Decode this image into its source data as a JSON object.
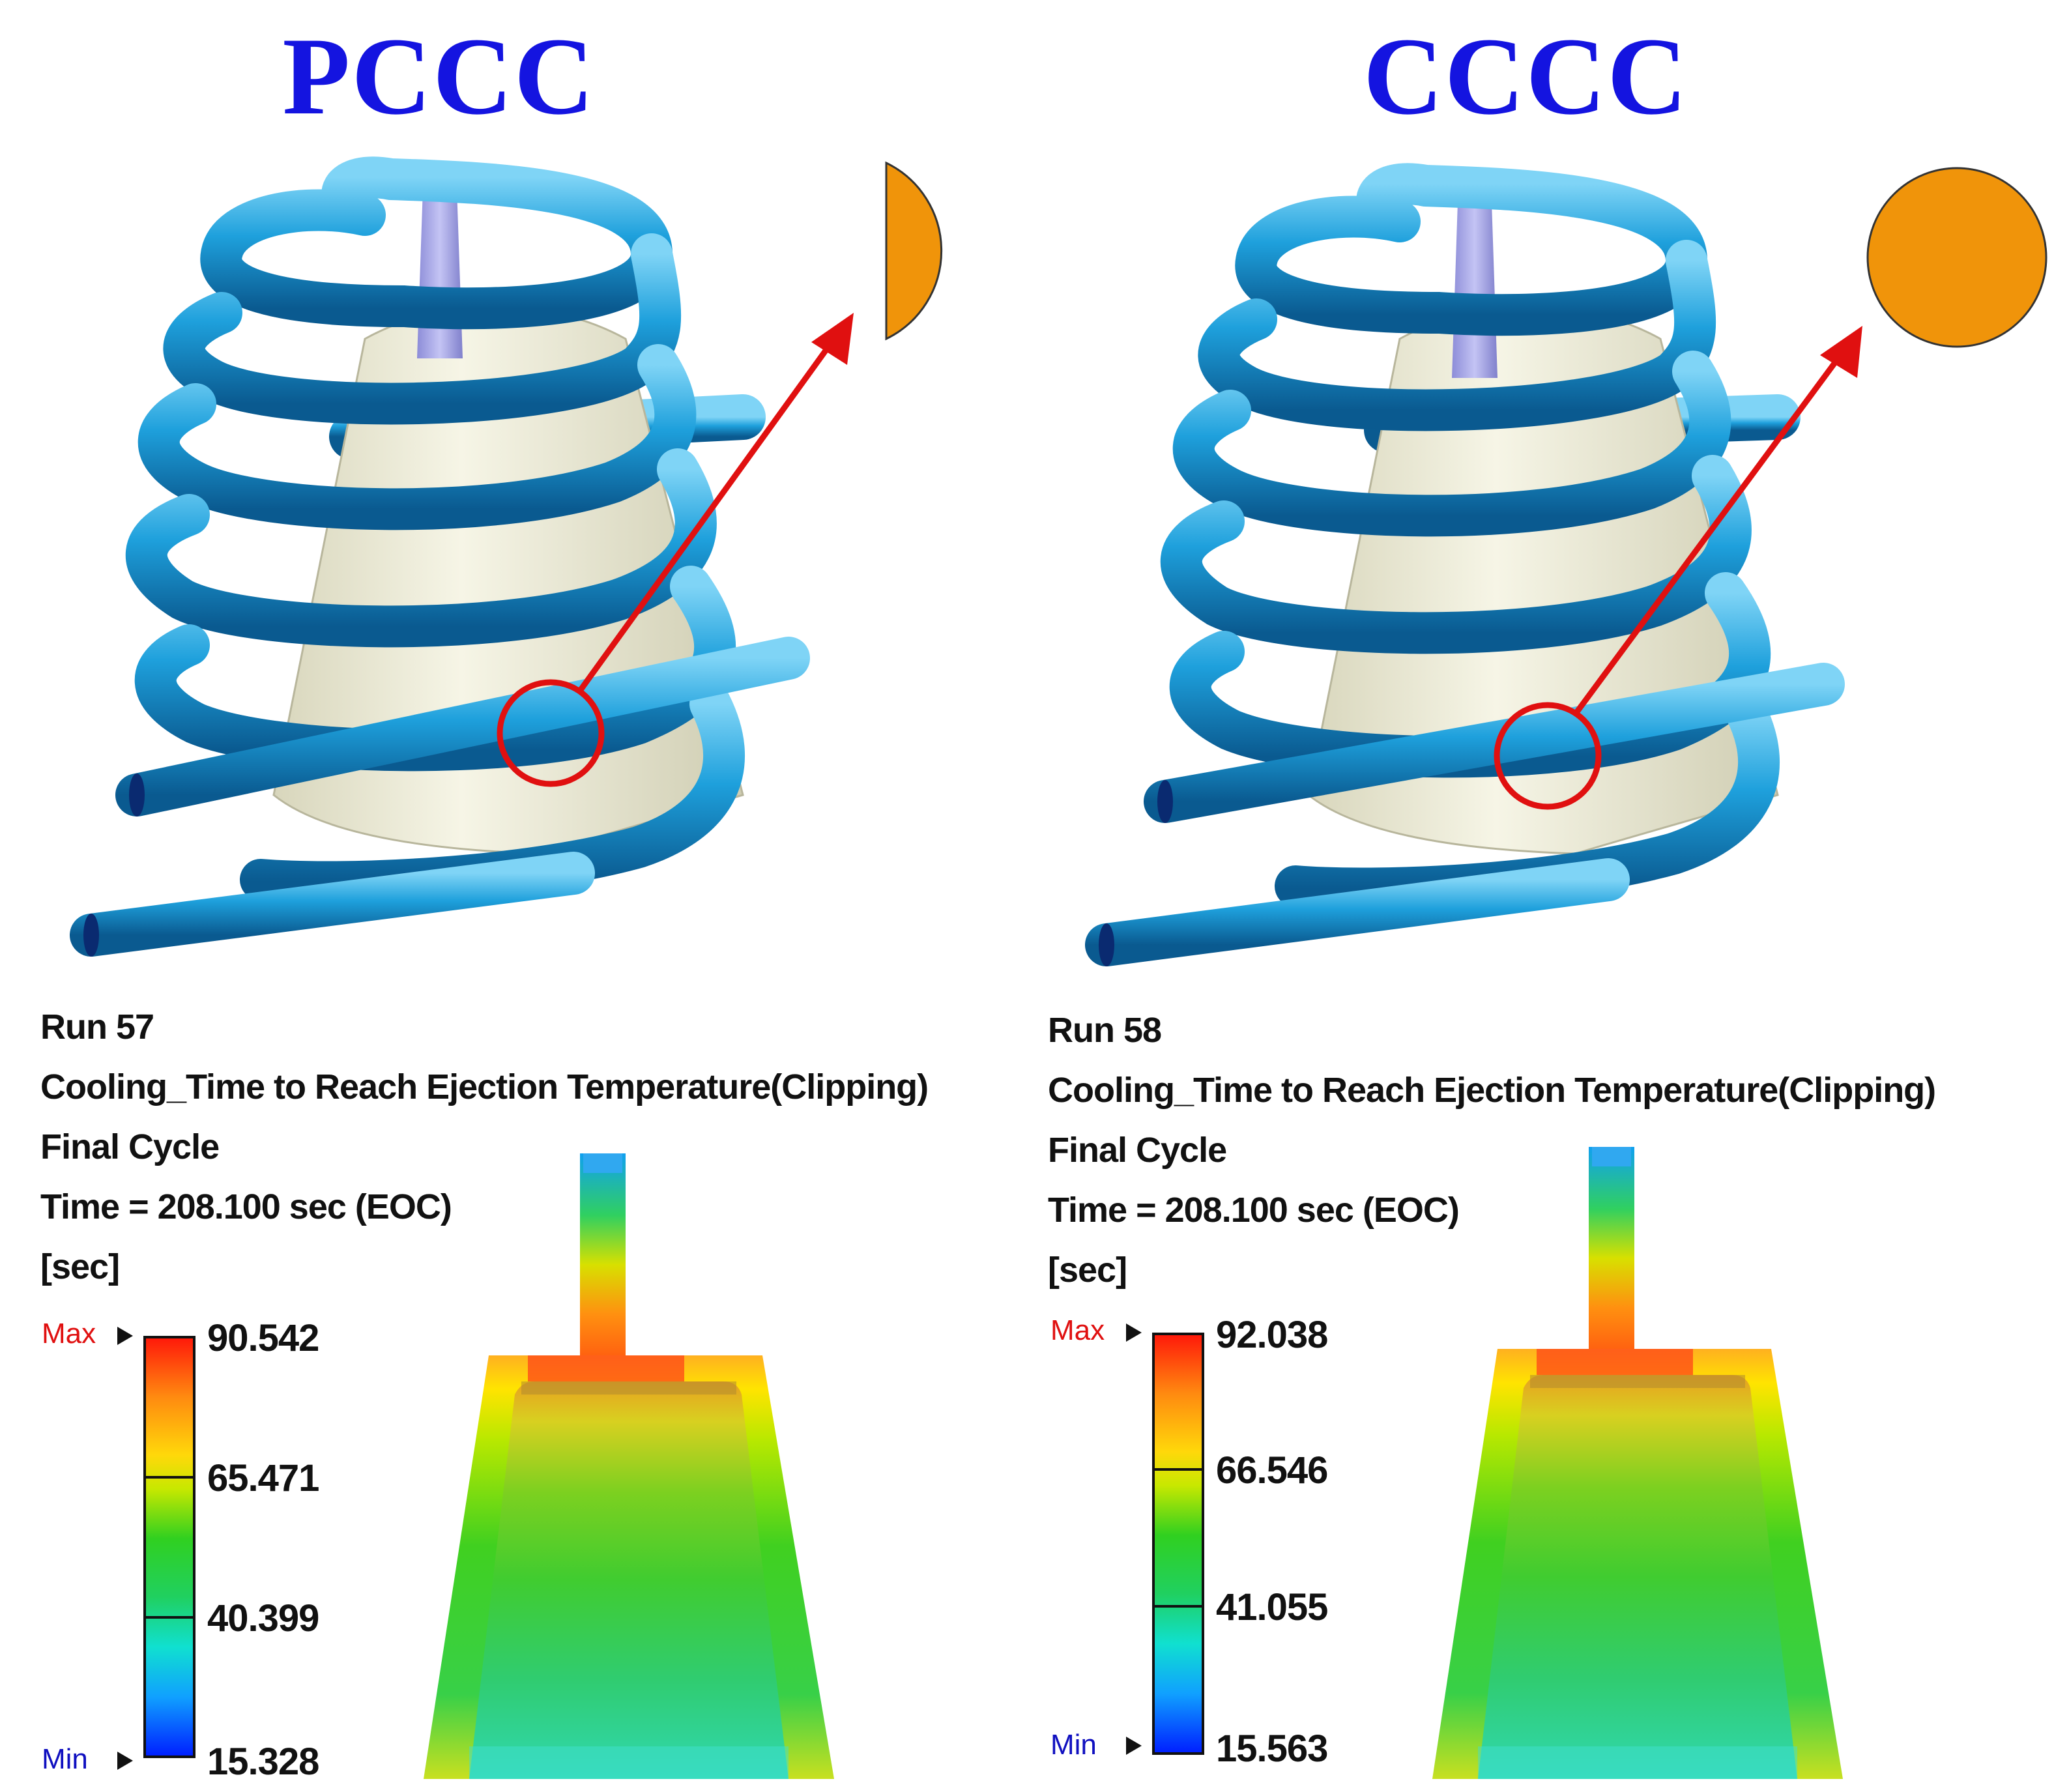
{
  "panels": [
    {
      "config_title": "PCCC",
      "run": "Run 57",
      "result": "Cooling_Time to Reach Ejection Temperature(Clipping)",
      "cycle": "Final Cycle",
      "time": "Time = 208.100 sec (EOC)",
      "unit": "[sec]",
      "legend": {
        "max_tag": "Max",
        "min_tag": "Min",
        "values": [
          "90.542",
          "65.471",
          "40.399",
          "15.328"
        ]
      },
      "channel_cross_section": "half-circle"
    },
    {
      "config_title": "CCCC",
      "run": "Run 58",
      "result": "Cooling_Time to Reach Ejection Temperature(Clipping)",
      "cycle": "Final Cycle",
      "time": "Time = 208.100 sec (EOC)",
      "unit": "[sec]",
      "legend": {
        "max_tag": "Max",
        "min_tag": "Min",
        "values": [
          "92.038",
          "66.546",
          "41.055",
          "15.563"
        ]
      },
      "channel_cross_section": "circle"
    }
  ],
  "colors": {
    "title": "#1414e0",
    "cooling_channel": "#1ea0dc",
    "part": "#efeedb",
    "sprue": "#a8a8e8",
    "cross_section": "#f0940a",
    "callout": "#e01010"
  }
}
